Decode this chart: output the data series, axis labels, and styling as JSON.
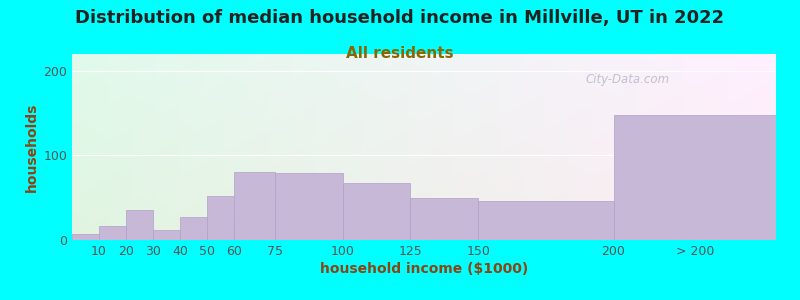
{
  "title": "Distribution of median household income in Millville, UT in 2022",
  "subtitle": "All residents",
  "xlabel": "household income ($1000)",
  "ylabel": "households",
  "background_color": "#00FFFF",
  "bar_color": "#c8b8d8",
  "bar_edge_color": "#b0a0c8",
  "categories": [
    "10",
    "20",
    "30",
    "40",
    "50",
    "60",
    "75",
    "100",
    "125",
    "150",
    "200",
    "> 200"
  ],
  "values": [
    7,
    17,
    35,
    12,
    27,
    52,
    80,
    79,
    67,
    50,
    46,
    148
  ],
  "bar_lefts": [
    0,
    10,
    20,
    30,
    40,
    50,
    60,
    75,
    100,
    125,
    150,
    200
  ],
  "bar_widths": [
    10,
    10,
    10,
    10,
    10,
    10,
    15,
    25,
    25,
    25,
    50,
    60
  ],
  "tick_positions": [
    10,
    20,
    30,
    40,
    50,
    60,
    75,
    100,
    125,
    150,
    200,
    230
  ],
  "xlim": [
    0,
    260
  ],
  "ylim": [
    0,
    220
  ],
  "yticks": [
    0,
    100,
    200
  ],
  "watermark": "City-Data.com",
  "title_fontsize": 13,
  "subtitle_fontsize": 11,
  "axis_label_fontsize": 10,
  "tick_fontsize": 9,
  "title_color": "#222222",
  "subtitle_color": "#886600",
  "axis_label_color": "#8B4513",
  "tick_color": "#555555",
  "watermark_color": "#b8b8c8"
}
